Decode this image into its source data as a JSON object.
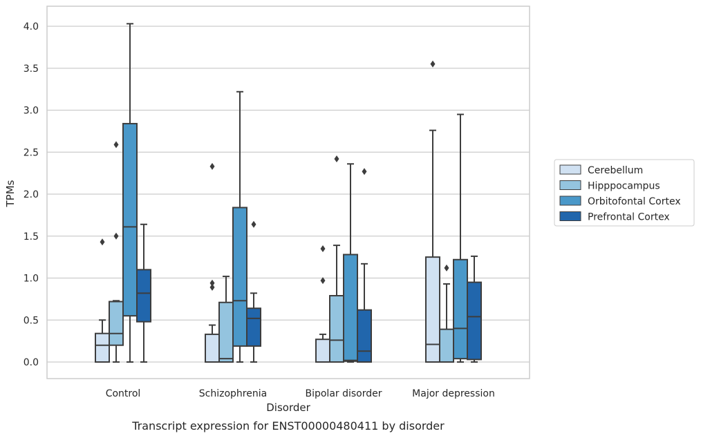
{
  "chart_data": {
    "type": "box",
    "caption": "Transcript expression for ENST00000480411 by disorder",
    "xlabel": "Disorder",
    "ylabel": "TPMs",
    "ylim": [
      -0.2,
      4.25
    ],
    "yticks": [
      0.0,
      0.5,
      1.0,
      1.5,
      2.0,
      2.5,
      3.0,
      3.5,
      4.0
    ],
    "ytick_labels": [
      "0.0",
      "0.5",
      "1.0",
      "1.5",
      "2.0",
      "2.5",
      "3.0",
      "3.5",
      "4.0"
    ],
    "grid": true,
    "legend_position": "right",
    "categories": [
      "Control",
      "Schizophrenia",
      "Bipolar disorder",
      "Major depression"
    ],
    "series": [
      {
        "name": "Cerebellum",
        "color": "#d0e1f2",
        "boxes": [
          {
            "whisker_low": 0.0,
            "q1": 0.0,
            "median": 0.2,
            "q3": 0.34,
            "whisker_high": 0.5,
            "outliers": [
              1.43
            ]
          },
          {
            "whisker_low": 0.0,
            "q1": 0.0,
            "median": 0.0,
            "q3": 0.33,
            "whisker_high": 0.44,
            "outliers": [
              0.89,
              0.94,
              2.33
            ]
          },
          {
            "whisker_low": 0.0,
            "q1": 0.0,
            "median": 0.0,
            "q3": 0.27,
            "whisker_high": 0.33,
            "outliers": [
              0.97,
              1.35
            ]
          },
          {
            "whisker_low": 0.0,
            "q1": 0.0,
            "median": 0.21,
            "q3": 1.25,
            "whisker_high": 2.76,
            "outliers": [
              3.55
            ]
          }
        ]
      },
      {
        "name": "Hipppocampus",
        "color": "#94c4df",
        "boxes": [
          {
            "whisker_low": 0.0,
            "q1": 0.2,
            "median": 0.34,
            "q3": 0.72,
            "whisker_high": 0.73,
            "outliers": [
              1.5,
              2.59
            ]
          },
          {
            "whisker_low": 0.0,
            "q1": 0.0,
            "median": 0.04,
            "q3": 0.71,
            "whisker_high": 1.02,
            "outliers": []
          },
          {
            "whisker_low": 0.0,
            "q1": 0.0,
            "median": 0.26,
            "q3": 0.79,
            "whisker_high": 1.39,
            "outliers": [
              2.42
            ]
          },
          {
            "whisker_low": 0.0,
            "q1": 0.0,
            "median": 0.0,
            "q3": 0.39,
            "whisker_high": 0.93,
            "outliers": [
              1.12
            ]
          }
        ]
      },
      {
        "name": "Orbitofontal Cortex",
        "color": "#4a98c9",
        "boxes": [
          {
            "whisker_low": 0.0,
            "q1": 0.55,
            "median": 1.61,
            "q3": 2.84,
            "whisker_high": 4.03,
            "outliers": []
          },
          {
            "whisker_low": 0.0,
            "q1": 0.19,
            "median": 0.73,
            "q3": 1.84,
            "whisker_high": 3.22,
            "outliers": []
          },
          {
            "whisker_low": 0.0,
            "q1": 0.01,
            "median": 0.02,
            "q3": 1.28,
            "whisker_high": 2.36,
            "outliers": []
          },
          {
            "whisker_low": 0.0,
            "q1": 0.04,
            "median": 0.4,
            "q3": 1.22,
            "whisker_high": 2.95,
            "outliers": []
          }
        ]
      },
      {
        "name": "Prefrontal Cortex",
        "color": "#2166ac",
        "boxes": [
          {
            "whisker_low": 0.0,
            "q1": 0.48,
            "median": 0.82,
            "q3": 1.1,
            "whisker_high": 1.64,
            "outliers": []
          },
          {
            "whisker_low": 0.0,
            "q1": 0.19,
            "median": 0.52,
            "q3": 0.64,
            "whisker_high": 0.82,
            "outliers": [
              1.64
            ]
          },
          {
            "whisker_low": 0.0,
            "q1": 0.0,
            "median": 0.13,
            "q3": 0.62,
            "whisker_high": 1.17,
            "outliers": [
              2.27
            ]
          },
          {
            "whisker_low": 0.0,
            "q1": 0.03,
            "median": 0.54,
            "q3": 0.95,
            "whisker_high": 1.26,
            "outliers": []
          }
        ]
      }
    ]
  }
}
